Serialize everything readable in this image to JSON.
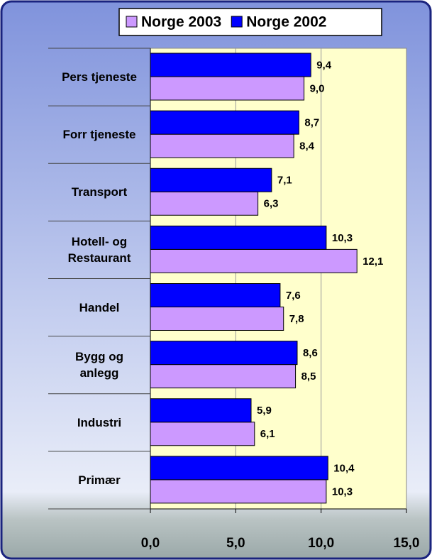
{
  "chart_data": {
    "type": "barh",
    "categories": [
      "Pers tjeneste",
      "Forr tjeneste",
      "Transport",
      "Hotell- og Restaurant",
      "Handel",
      "Bygg og anlegg",
      "Industri",
      "Primær"
    ],
    "series": [
      {
        "name": "Norge 2003",
        "color": "#cc99ff",
        "values": [
          9.0,
          8.4,
          6.3,
          12.1,
          7.8,
          8.5,
          6.1,
          10.3
        ],
        "value_labels": [
          "9,0",
          "8,4",
          "6,3",
          "12,1",
          "7,8",
          "8,5",
          "6,1",
          "10,3"
        ]
      },
      {
        "name": "Norge 2002",
        "color": "#0000ff",
        "values": [
          9.4,
          8.7,
          7.1,
          10.3,
          7.6,
          8.6,
          5.9,
          10.4
        ],
        "value_labels": [
          "9,4",
          "8,7",
          "7,1",
          "10,3",
          "7,6",
          "8,6",
          "5,9",
          "10,4"
        ]
      }
    ],
    "xlim": [
      0,
      15
    ],
    "xticks": [
      {
        "value": 0,
        "label": "0,0"
      },
      {
        "value": 5,
        "label": "5,0"
      },
      {
        "value": 10,
        "label": "10,0"
      },
      {
        "value": 15,
        "label": "15,0"
      }
    ],
    "grid": true,
    "legend": "top"
  }
}
